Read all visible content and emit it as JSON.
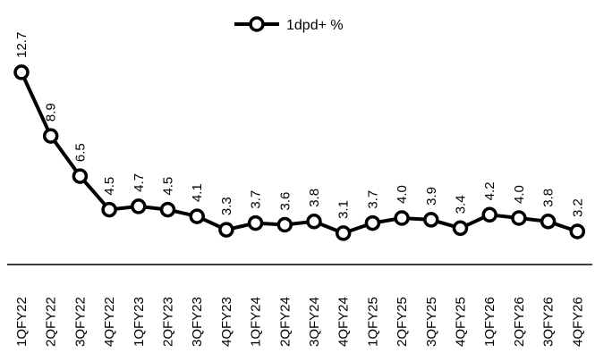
{
  "chart_data": {
    "type": "line",
    "categories": [
      "1QFY22",
      "2QFY22",
      "3QFY22",
      "4QFY22",
      "1QFY23",
      "2QFY23",
      "3QFY23",
      "4QFY23",
      "1QFY24",
      "2QFY24",
      "3QFY24",
      "4QFY24",
      "1QFY25",
      "2QFY25",
      "3QFY25",
      "4QFY25",
      "1QFY26",
      "2QFY26",
      "3QFY26",
      "4QFY26"
    ],
    "series": [
      {
        "name": "1dpd+ %",
        "values": [
          12.7,
          8.9,
          6.5,
          4.5,
          4.7,
          4.5,
          4.1,
          3.3,
          3.7,
          3.6,
          3.8,
          3.1,
          3.7,
          4.0,
          3.9,
          3.4,
          4.2,
          4.0,
          3.8,
          3.2
        ]
      }
    ],
    "data_labels": [
      "12.7",
      "8.9",
      "6.5",
      "4.5",
      "4.7",
      "4.5",
      "4.1",
      "3.3",
      "3.7",
      "3.6",
      "3.8",
      "3.1",
      "3.7",
      "4.0",
      "3.9",
      "3.4",
      "4.2",
      "4.0",
      "3.8",
      "3.2"
    ],
    "legend_position": "top-center",
    "grid": false,
    "ylim": [
      0,
      13.5
    ],
    "colors": {
      "line": "#000000",
      "marker_fill": "#ffffff",
      "marker_stroke": "#000000"
    }
  }
}
